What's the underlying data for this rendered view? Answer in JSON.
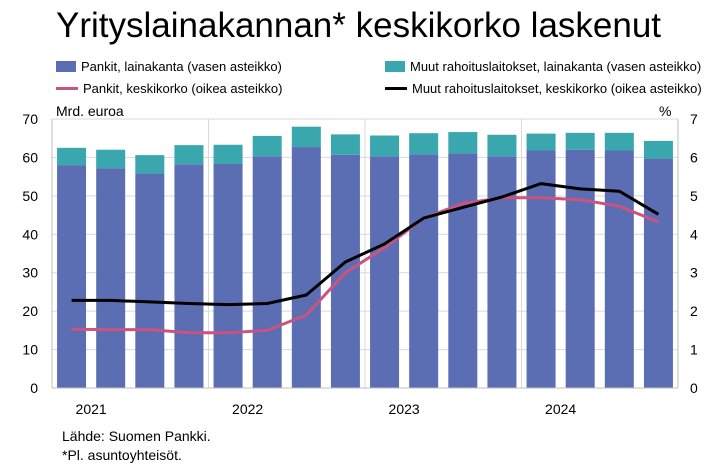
{
  "title": "Yrityslainakannan* keskikorko laskenut",
  "legend": {
    "banks_stock": "Pankit, lainakanta (vasen asteikko)",
    "other_stock": "Muut rahoituslaitokset, lainakanta (vasen asteikko)",
    "banks_rate": "Pankit, keskikorko (oikea asteikko)",
    "other_rate": "Muut rahoituslaitokset, keskikorko (oikea asteikko)"
  },
  "colors": {
    "banks_stock": "#5b6db3",
    "other_stock": "#3aa6ae",
    "banks_rate": "#c9547f",
    "other_rate": "#000000"
  },
  "left_unit": "Mrd. euroa",
  "right_unit": "%",
  "footer": {
    "source": "Lähde: Suomen Pankki.",
    "note": "*Pl. asuntoyhteisöt."
  },
  "chart_data": {
    "type": "bar",
    "categories": [
      "2021Q1",
      "2021Q2",
      "2021Q3",
      "2021Q4",
      "2022Q1",
      "2022Q2",
      "2022Q3",
      "2022Q4",
      "2023Q1",
      "2023Q2",
      "2023Q3",
      "2023Q4",
      "2024Q1",
      "2024Q2",
      "2024Q3",
      "2024Q4"
    ],
    "x_tick_labels": [
      "2021",
      "2022",
      "2023",
      "2024"
    ],
    "series": [
      {
        "name": "Pankit, lainakanta (vasen asteikko)",
        "type": "bar",
        "stack": "total",
        "axis": "left",
        "values": [
          58.0,
          57.2,
          55.8,
          58.2,
          58.3,
          60.3,
          62.7,
          60.7,
          60.3,
          60.8,
          61.0,
          60.3,
          61.8,
          62.0,
          61.8,
          59.7
        ]
      },
      {
        "name": "Muut rahoituslaitokset, lainakanta (vasen asteikko)",
        "type": "bar",
        "stack": "total",
        "axis": "left",
        "values": [
          4.5,
          4.8,
          4.8,
          5.0,
          5.0,
          5.3,
          5.3,
          5.3,
          5.4,
          5.5,
          5.6,
          5.6,
          4.4,
          4.4,
          4.6,
          4.6
        ]
      },
      {
        "name": "Pankit, keskikorko (oikea asteikko)",
        "type": "line",
        "axis": "right",
        "values": [
          1.53,
          1.52,
          1.52,
          1.44,
          1.44,
          1.5,
          1.9,
          3.0,
          3.65,
          4.42,
          4.8,
          4.95,
          4.95,
          4.9,
          4.73,
          4.32
        ]
      },
      {
        "name": "Muut rahoituslaitokset, keskikorko (oikea asteikko)",
        "type": "line",
        "axis": "right",
        "values": [
          2.28,
          2.28,
          2.24,
          2.2,
          2.17,
          2.2,
          2.42,
          3.28,
          3.75,
          4.42,
          4.7,
          4.97,
          5.32,
          5.18,
          5.12,
          4.52
        ]
      }
    ],
    "ylabel_left": "Mrd. euroa",
    "ylabel_right": "%",
    "ylim_left": [
      0,
      70
    ],
    "ylim_right": [
      0,
      7
    ],
    "yticks_left": [
      "0",
      "10",
      "20",
      "30",
      "40",
      "50",
      "60",
      "70"
    ],
    "yticks_right": [
      "0",
      "1",
      "2",
      "3",
      "4",
      "5",
      "6",
      "7"
    ],
    "grid": true,
    "legend_position": "top"
  }
}
